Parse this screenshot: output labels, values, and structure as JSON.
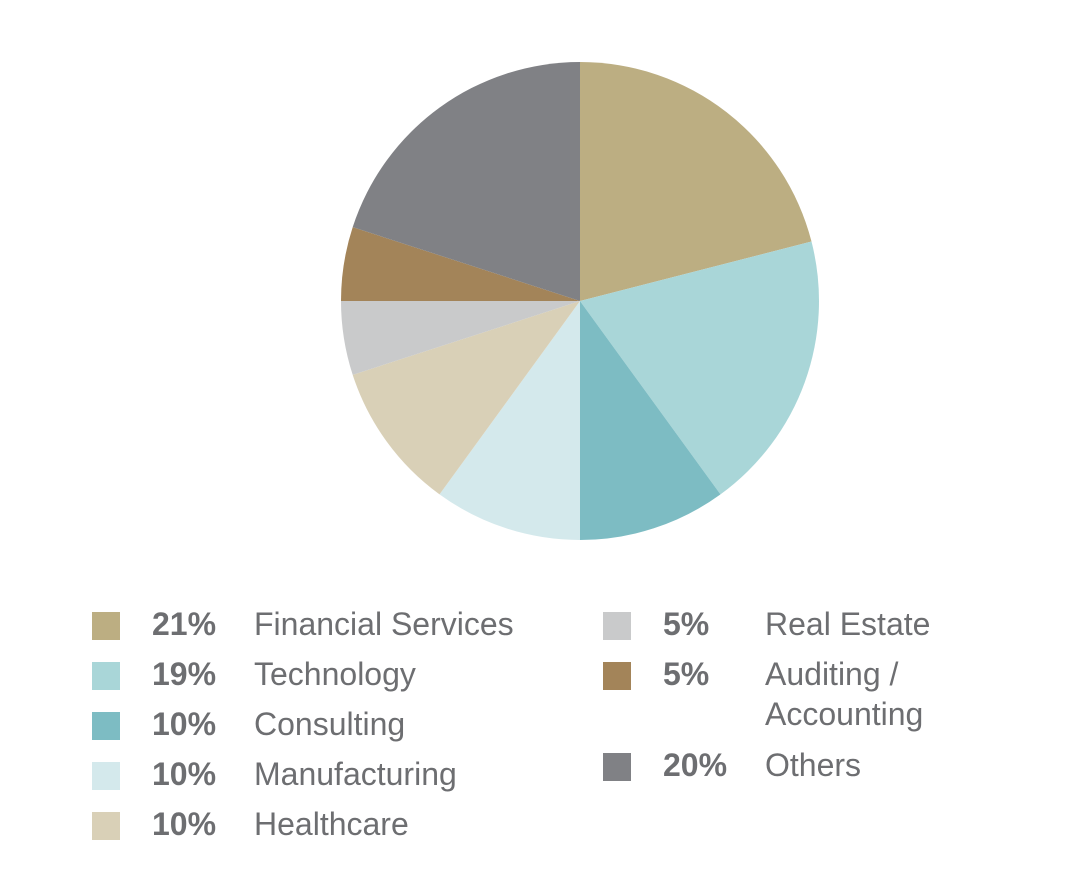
{
  "chart_data": {
    "type": "pie",
    "title": "",
    "slices": [
      {
        "pct_label": "21%",
        "value": 21,
        "label": "Financial Services",
        "color": "#bcae82"
      },
      {
        "pct_label": "19%",
        "value": 19,
        "label": "Technology",
        "color": "#a9d6d8"
      },
      {
        "pct_label": "10%",
        "value": 10,
        "label": "Consulting",
        "color": "#7dbcc3"
      },
      {
        "pct_label": "10%",
        "value": 10,
        "label": "Manufacturing",
        "color": "#d4e9ec"
      },
      {
        "pct_label": "10%",
        "value": 10,
        "label": "Healthcare",
        "color": "#d9d0b7"
      },
      {
        "pct_label": "5%",
        "value": 5,
        "label": "Real Estate",
        "color": "#c9cacb"
      },
      {
        "pct_label": "5%",
        "value": 5,
        "label": "Auditing /\nAccounting",
        "color": "#a38459"
      },
      {
        "pct_label": "20%",
        "value": 20,
        "label": "Others",
        "color": "#808185"
      }
    ],
    "legend_placement": "bottom"
  }
}
